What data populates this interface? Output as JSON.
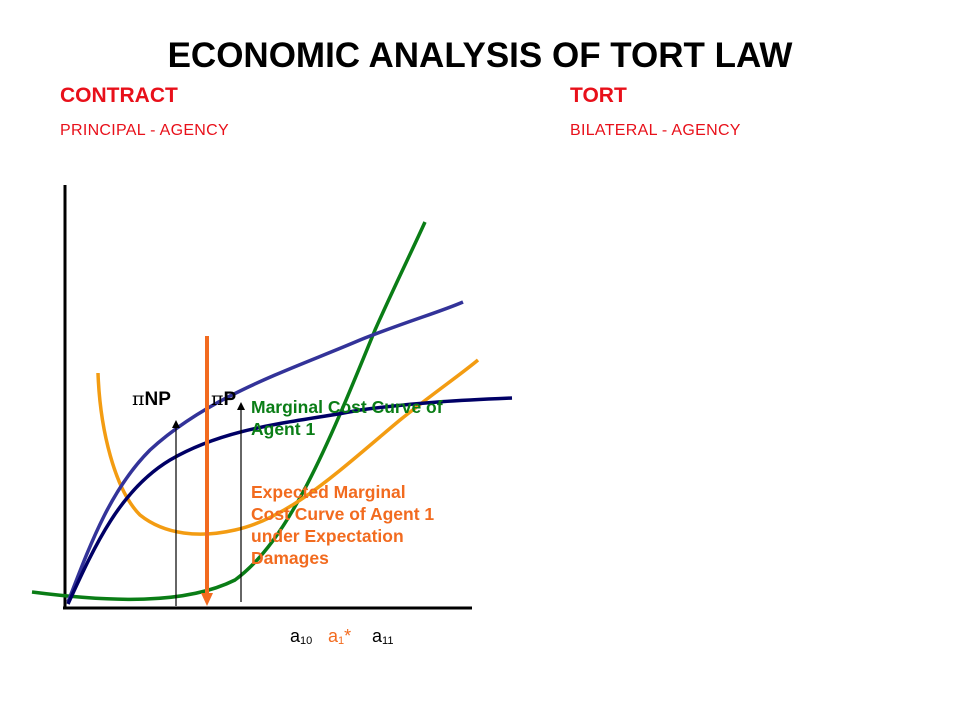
{
  "title": "ECONOMIC ANALYSIS OF TORT LAW",
  "left_column": {
    "heading": "CONTRACT",
    "subheading": "PRINCIPAL - AGENCY"
  },
  "right_column": {
    "heading": "TORT",
    "subheading": "BILATERAL - AGENCY"
  },
  "colors": {
    "heading_red": "#e8101a",
    "mc_curve_green": "#0a7d16",
    "expected_mc_orange": "#f39c12",
    "benefit_curve_blue": "#333399",
    "benefit_curve_navy": "#000066",
    "arrow_orange": "#f26b1f"
  },
  "diagram": {
    "pi_symbol": "π",
    "label_np": "NP",
    "label_p": "P",
    "mc_annotation": {
      "line1": "Marginal Cost Curve of",
      "line2": "Agent 1"
    },
    "expected_mc_annotation": {
      "line1": "Expected Marginal",
      "line2": "Cost Curve of Agent 1",
      "line3": "under Expectation",
      "line4": "Damages"
    },
    "x_labels": {
      "a10": {
        "base": "a",
        "sub": "10"
      },
      "a1star": {
        "base": "a",
        "sub": "1",
        "star": "*"
      },
      "a11": {
        "base": "a",
        "sub": "11"
      }
    }
  }
}
